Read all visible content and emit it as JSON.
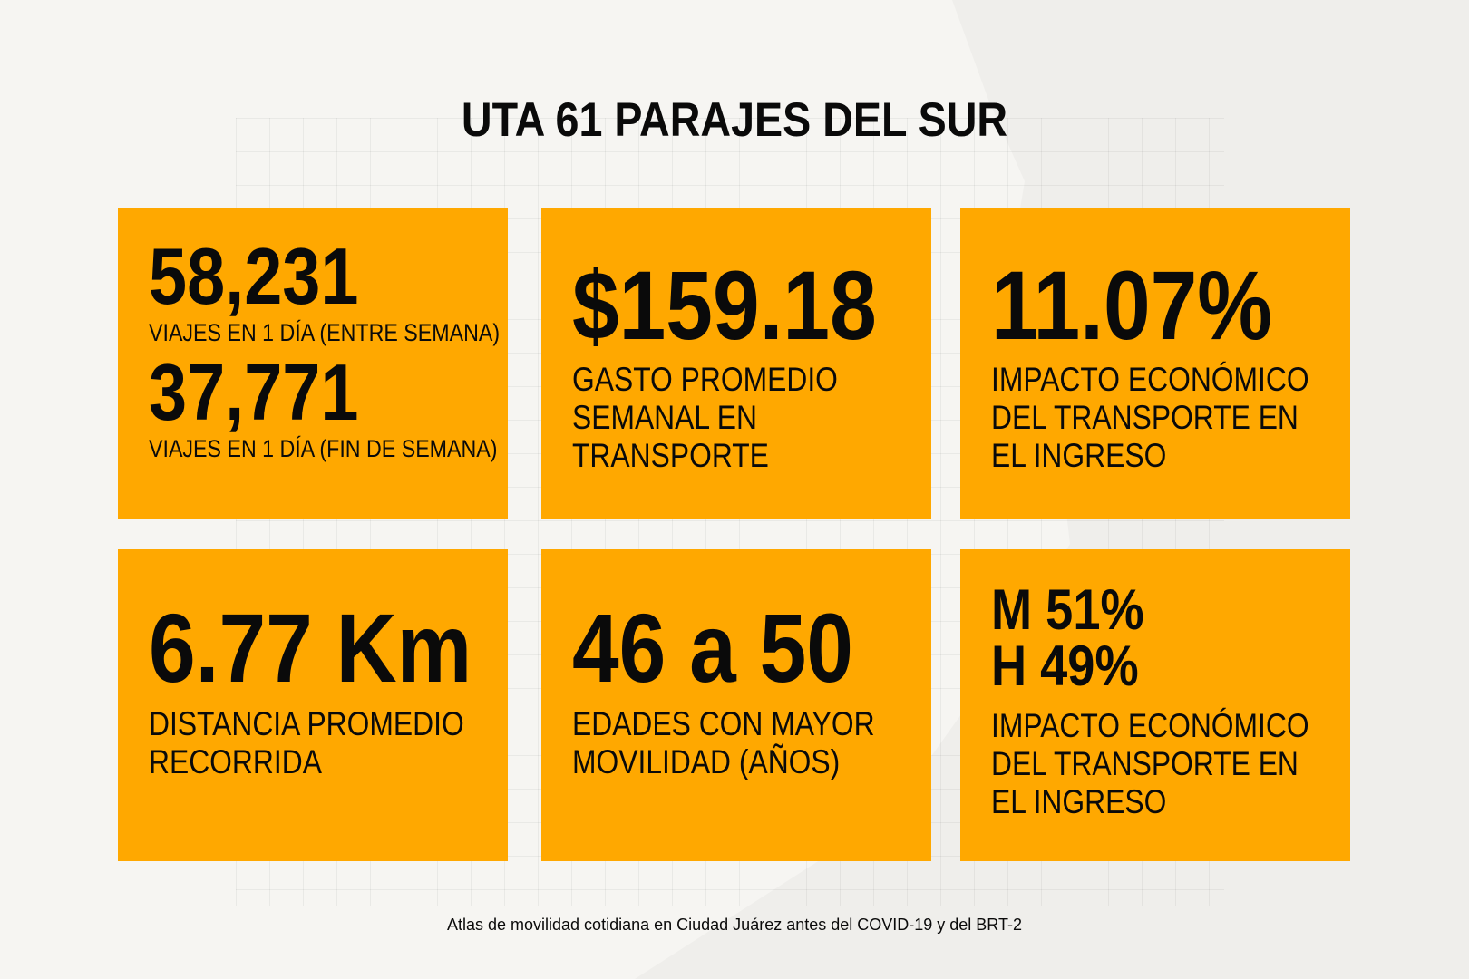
{
  "title": "UTA 61 PARAJES DEL SUR",
  "colors": {
    "card": "#ffa800",
    "text": "#0a0a0a",
    "background": "#efeeeb"
  },
  "cards": [
    {
      "entries": [
        {
          "value": "58,231",
          "label": "VIAJES EN 1 DÍA (ENTRE SEMANA)"
        },
        {
          "value": "37,771",
          "label": "VIAJES EN 1 DÍA (FIN DE SEMANA)"
        }
      ]
    },
    {
      "value": "$159.18",
      "label_lines": [
        "GASTO PROMEDIO",
        "SEMANAL EN",
        "TRANSPORTE"
      ]
    },
    {
      "value": "11.07%",
      "label_lines": [
        "IMPACTO ECONÓMICO",
        "DEL TRANSPORTE EN",
        "EL INGRESO"
      ]
    },
    {
      "value": "6.77 Km",
      "label_lines": [
        "DISTANCIA PROMEDIO",
        "RECORRIDA"
      ]
    },
    {
      "value": "46 a 50",
      "label_lines": [
        "EDADES CON MAYOR",
        "MOVILIDAD (AÑOS)"
      ]
    },
    {
      "value_lines": [
        "M 51%",
        "H 49%"
      ],
      "label_lines": [
        "IMPACTO ECONÓMICO",
        "DEL TRANSPORTE EN",
        "EL INGRESO"
      ]
    }
  ],
  "footer": "Atlas de movilidad cotidiana en Ciudad Juárez antes del COVID-19 y del BRT-2"
}
